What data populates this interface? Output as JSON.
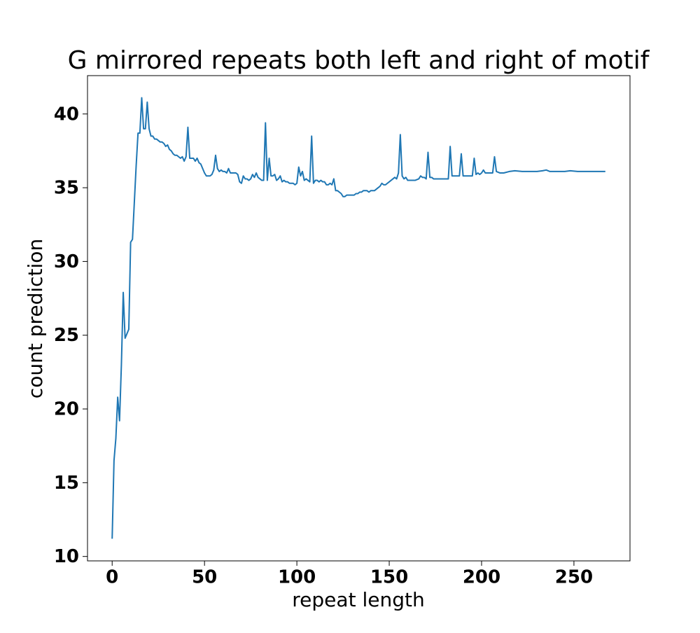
{
  "chart_data": {
    "type": "line",
    "title": "G mirrored repeats both left and right of motif",
    "x_label": "repeat length",
    "y_label": "count prediction",
    "color": "#1f77b4",
    "x": [
      0,
      1,
      2,
      3,
      4,
      5,
      6,
      7,
      8,
      9,
      10,
      11,
      12,
      13,
      14,
      15,
      16,
      17,
      18,
      19,
      20,
      21,
      22,
      23,
      24,
      25,
      26,
      27,
      28,
      29,
      30,
      31,
      32,
      33,
      34,
      35,
      36,
      37,
      38,
      39,
      40,
      41,
      42,
      43,
      44,
      45,
      46,
      47,
      48,
      49,
      50,
      51,
      52,
      53,
      54,
      55,
      56,
      57,
      58,
      59,
      60,
      61,
      62,
      63,
      64,
      65,
      66,
      67,
      68,
      69,
      70,
      71,
      72,
      73,
      74,
      75,
      76,
      77,
      78,
      79,
      80,
      81,
      82,
      83,
      84,
      85,
      86,
      87,
      88,
      89,
      90,
      91,
      92,
      93,
      94,
      95,
      96,
      97,
      98,
      99,
      100,
      101,
      102,
      103,
      104,
      105,
      106,
      107,
      108,
      109,
      110,
      111,
      112,
      113,
      114,
      115,
      116,
      117,
      118,
      119,
      120,
      121,
      122,
      123,
      124,
      125,
      126,
      127,
      128,
      129,
      130,
      131,
      132,
      133,
      134,
      135,
      136,
      137,
      138,
      139,
      140,
      141,
      142,
      143,
      144,
      145,
      146,
      147,
      148,
      149,
      150,
      151,
      152,
      153,
      154,
      155,
      156,
      157,
      158,
      159,
      160,
      162,
      164,
      166,
      167,
      168,
      169,
      170,
      171,
      172,
      173,
      174,
      176,
      178,
      180,
      182,
      183,
      184,
      186,
      188,
      189,
      190,
      192,
      194,
      195,
      196,
      197,
      198,
      199,
      200,
      201,
      202,
      204,
      206,
      207,
      208,
      210,
      212,
      215,
      218,
      222,
      226,
      230,
      233,
      235,
      237,
      240,
      245,
      248,
      252,
      258,
      263,
      267
    ],
    "values": [
      11.2,
      16.5,
      18,
      20.8,
      19.2,
      23,
      27.9,
      24.8,
      25.1,
      25.4,
      31.3,
      31.5,
      34,
      36.5,
      38.7,
      38.7,
      41.1,
      39,
      39,
      40.8,
      39,
      38.5,
      38.5,
      38.3,
      38.3,
      38.2,
      38.1,
      38.1,
      38,
      37.8,
      37.9,
      37.6,
      37.5,
      37.3,
      37.2,
      37.2,
      37.1,
      37,
      37.1,
      36.8,
      37.1,
      39.1,
      37,
      37,
      37,
      36.8,
      37,
      36.7,
      36.6,
      36.3,
      36,
      35.8,
      35.8,
      35.8,
      35.9,
      36.2,
      37.2,
      36.3,
      36.1,
      36.2,
      36.1,
      36.1,
      36,
      36.3,
      36,
      36,
      36,
      36,
      35.9,
      35.4,
      35.3,
      35.8,
      35.6,
      35.6,
      35.5,
      35.6,
      35.9,
      35.7,
      36,
      35.7,
      35.6,
      35.5,
      35.5,
      39.4,
      35.5,
      37,
      35.8,
      35.8,
      35.9,
      35.5,
      35.6,
      35.8,
      35.4,
      35.5,
      35.4,
      35.4,
      35.3,
      35.3,
      35.3,
      35.2,
      35.3,
      36.4,
      35.8,
      36.1,
      35.5,
      35.6,
      35.5,
      35.4,
      38.5,
      35.3,
      35.5,
      35.5,
      35.4,
      35.5,
      35.4,
      35.4,
      35.2,
      35.2,
      35.3,
      35.2,
      35.6,
      34.8,
      34.8,
      34.7,
      34.6,
      34.4,
      34.4,
      34.5,
      34.5,
      34.5,
      34.5,
      34.5,
      34.6,
      34.6,
      34.7,
      34.7,
      34.8,
      34.8,
      34.8,
      34.7,
      34.8,
      34.8,
      34.8,
      34.9,
      35,
      35.1,
      35.3,
      35.2,
      35.2,
      35.3,
      35.4,
      35.5,
      35.6,
      35.7,
      35.6,
      36,
      38.6,
      35.8,
      35.6,
      35.7,
      35.5,
      35.5,
      35.5,
      35.6,
      35.8,
      35.7,
      35.7,
      35.6,
      37.4,
      35.7,
      35.7,
      35.6,
      35.6,
      35.6,
      35.6,
      35.6,
      37.8,
      35.8,
      35.8,
      35.8,
      37.3,
      35.8,
      35.8,
      35.8,
      35.8,
      37,
      35.9,
      36,
      35.9,
      36,
      36.2,
      36,
      36,
      36,
      37.1,
      36.1,
      36,
      36,
      36.1,
      36.15,
      36.1,
      36.1,
      36.1,
      36.15,
      36.2,
      36.1,
      36.1,
      36.1,
      36.15,
      36.1,
      36.1,
      36.1,
      36.1
    ],
    "xlim": [
      -13.35,
      280.35
    ],
    "xticks": [
      0,
      50,
      100,
      150,
      200,
      250
    ],
    "ylim": [
      9.7,
      42.6
    ],
    "yticks": [
      10,
      15,
      20,
      25,
      30,
      35,
      40
    ]
  }
}
